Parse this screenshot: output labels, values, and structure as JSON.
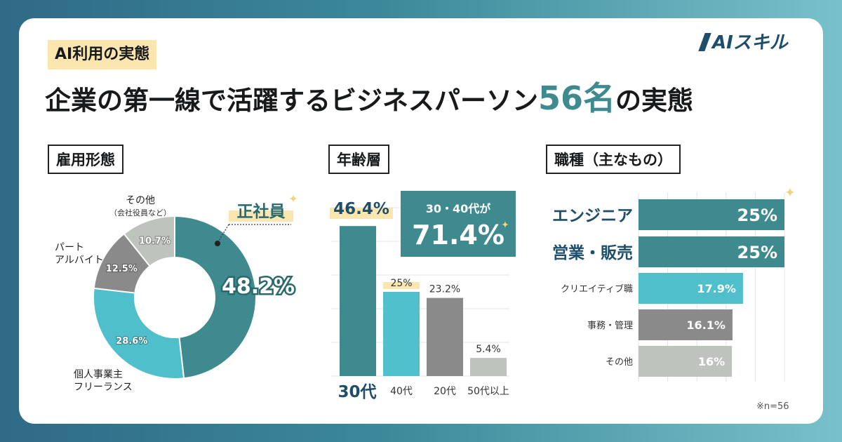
{
  "header": {
    "tag": "AI利用の実態",
    "title_before": "企業の第一線で活躍するビジネスパーソン",
    "title_accent": "56名",
    "title_after": "の実態"
  },
  "brand": {
    "logo_text": "AIスキル"
  },
  "sections": {
    "employment": "雇用形態",
    "age": "年齢層",
    "job": "職種（主なもの）"
  },
  "note": "※n=56",
  "colors": {
    "teal_dark": "#3f8a8f",
    "cyan": "#4fbfcc",
    "gray_dark": "#8a8a8a",
    "gray_light": "#bfc3bd",
    "highlight": "#fbe6b0",
    "navy": "#1f4e6b"
  },
  "chart_data": [
    {
      "type": "pie",
      "variant": "donut",
      "title": "雇用形態",
      "slices": [
        {
          "label": "正社員",
          "value": 48.2,
          "display": "48.2%",
          "color": "#3f8a8f"
        },
        {
          "label": "個人事業主\nフリーランス",
          "value": 28.6,
          "display": "28.6%",
          "color": "#4fbfcc"
        },
        {
          "label": "パート\nアルバイト",
          "value": 12.5,
          "display": "12.5%",
          "color": "#8a8a8a"
        },
        {
          "label": "その他",
          "sublabel": "（会社役員など）",
          "value": 10.7,
          "display": "10.7%",
          "color": "#bfc3bd"
        }
      ]
    },
    {
      "type": "bar",
      "title": "年齢層",
      "categories": [
        "30代",
        "40代",
        "20代",
        "50代以上"
      ],
      "values": [
        46.4,
        25,
        23.2,
        5.4
      ],
      "display": [
        "46.4%",
        "25%",
        "23.2%",
        "5.4%"
      ],
      "colors": [
        "#3f8a8f",
        "#4fbfcc",
        "#8a8a8a",
        "#bfc3bd"
      ],
      "ylim": [
        0,
        50
      ],
      "grid": true,
      "callout": {
        "text": "30・40代が",
        "value": "71.4%"
      }
    },
    {
      "type": "bar",
      "orientation": "horizontal",
      "title": "職種（主なもの）",
      "categories": [
        "エンジニア",
        "営業・販売",
        "クリエイティブ職",
        "事務・管理",
        "その他"
      ],
      "values": [
        25,
        25,
        17.9,
        16.1,
        16
      ],
      "display": [
        "25%",
        "25%",
        "17.9%",
        "16.1%",
        "16%"
      ],
      "colors": [
        "#3f8a8f",
        "#3f8a8f",
        "#4fbfcc",
        "#8a8a8a",
        "#bfc3bd"
      ],
      "xlim": [
        0,
        25
      ],
      "grid": true
    }
  ]
}
